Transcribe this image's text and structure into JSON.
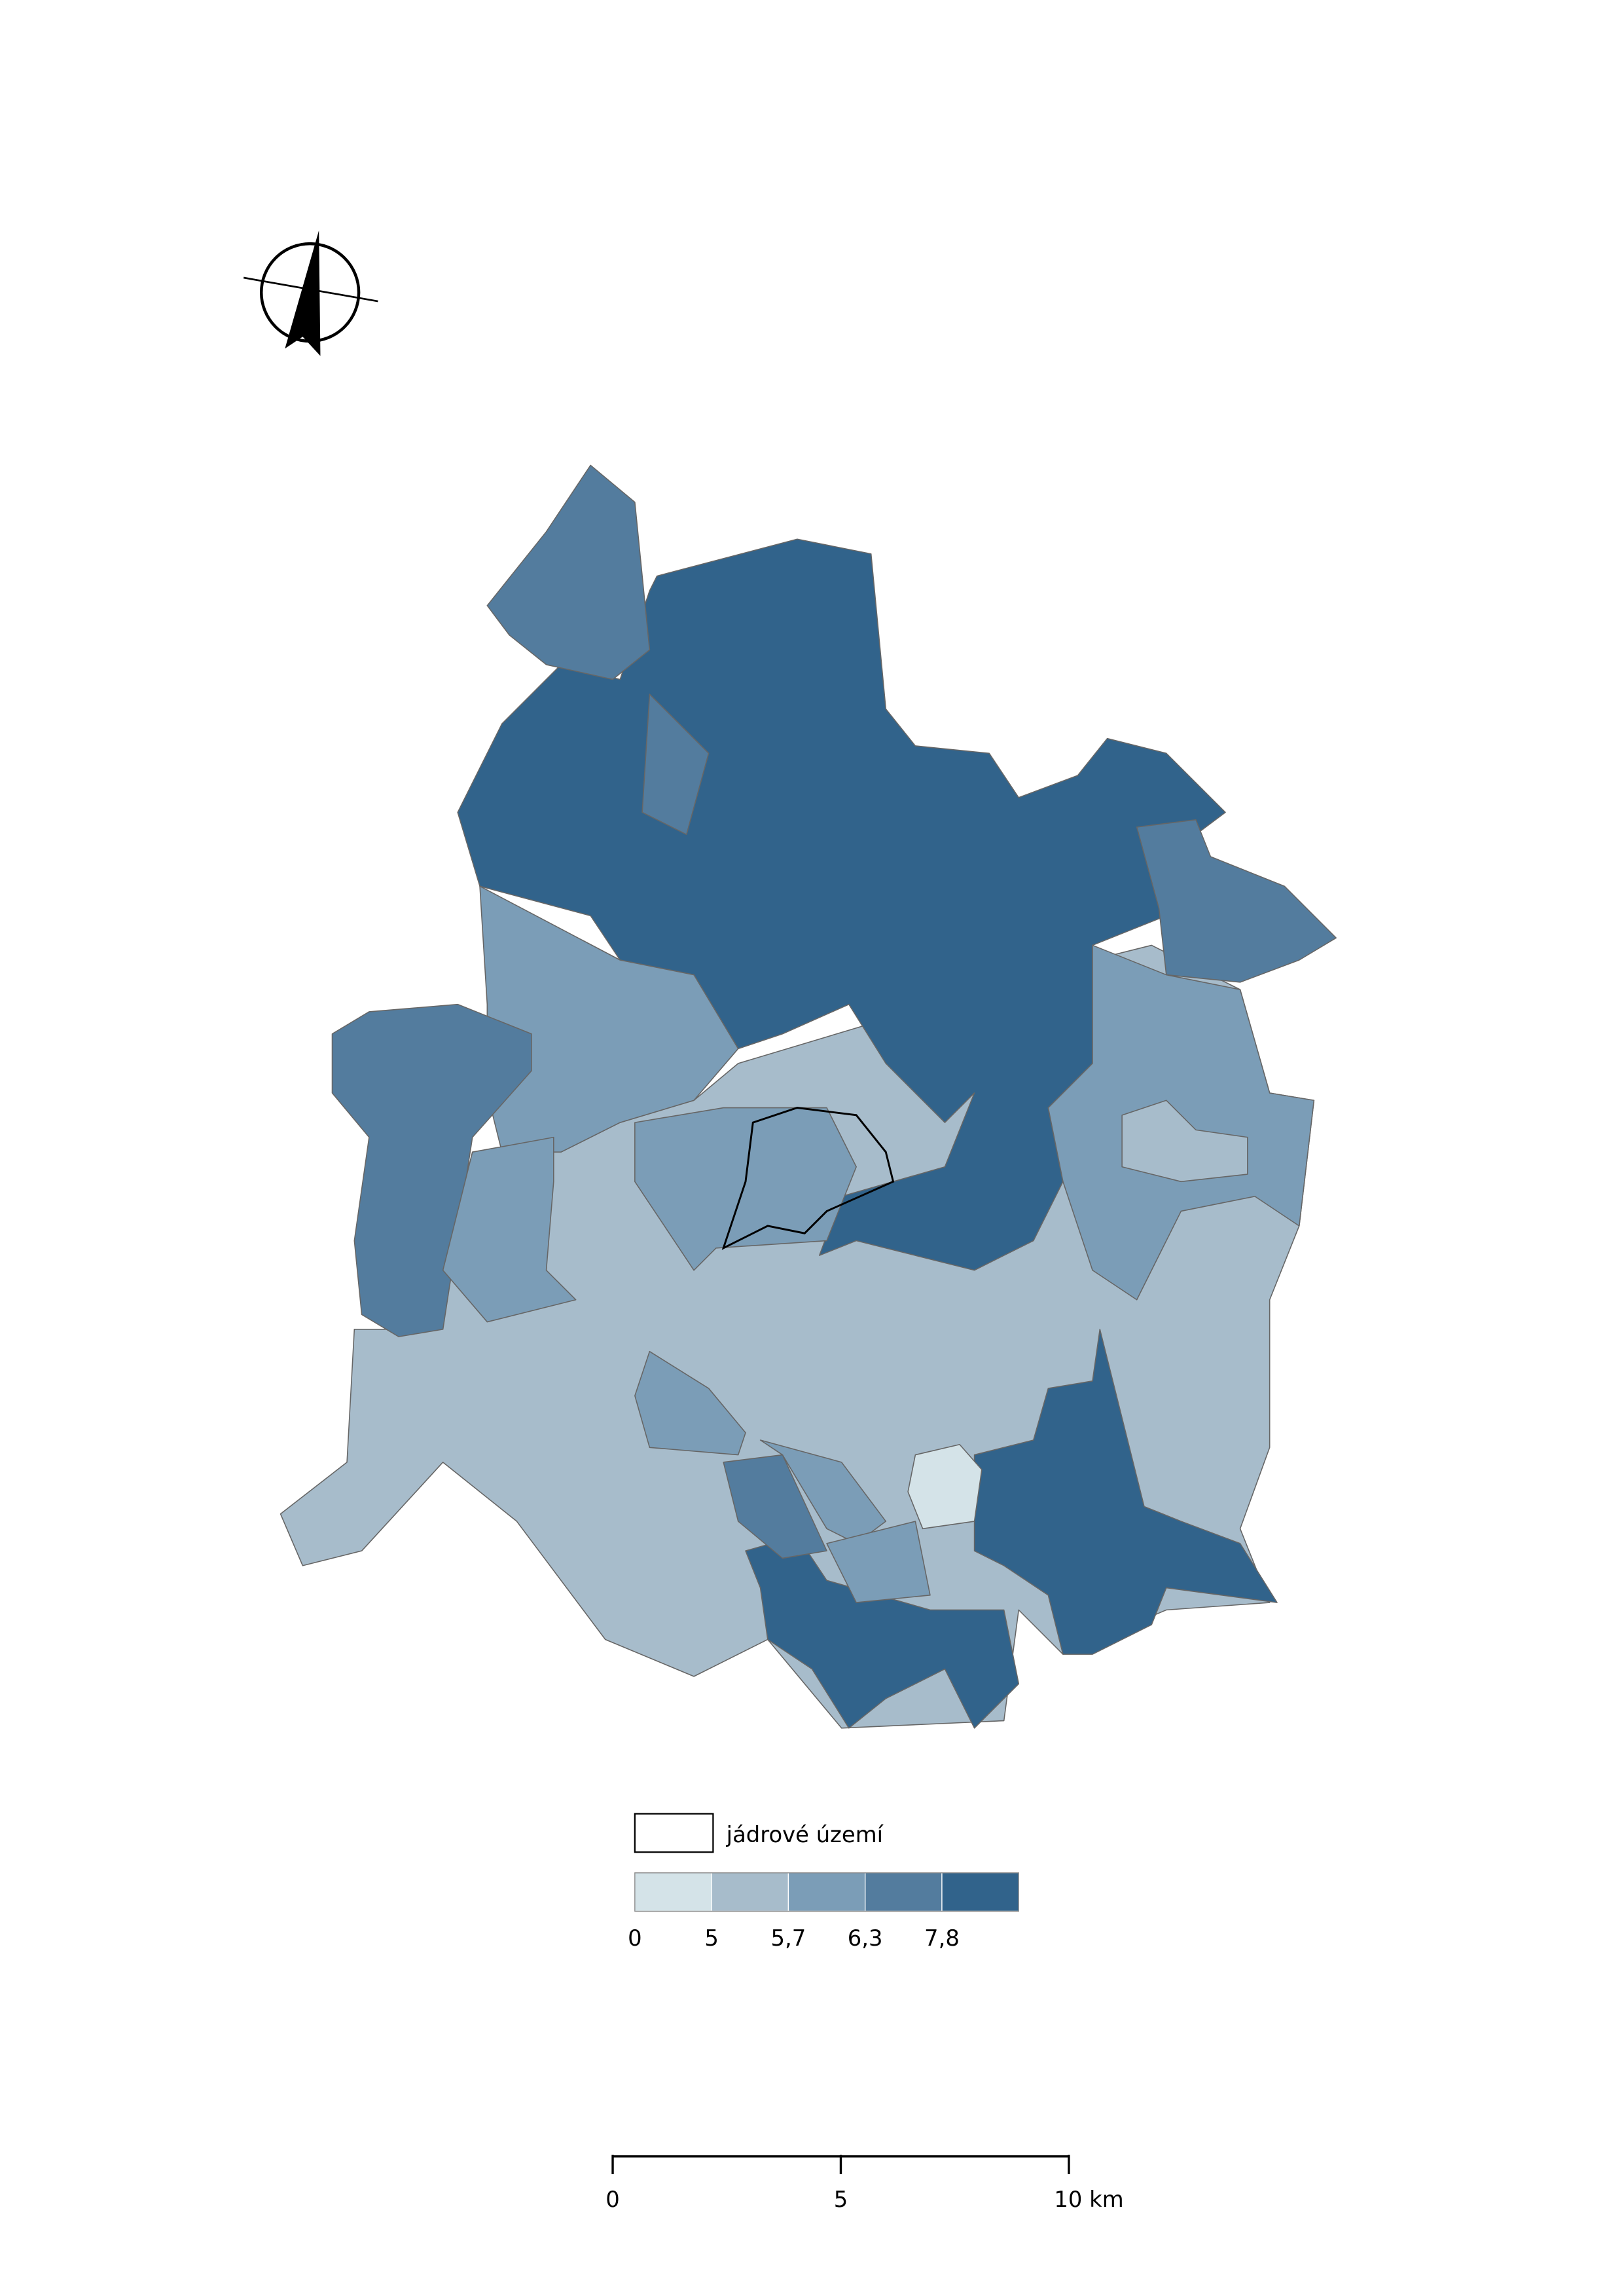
{
  "legend": {
    "core_label": "jádrové území",
    "breaks": [
      0,
      5,
      {
        "value": 5.7,
        "label": "5,7"
      },
      {
        "value": 6.3,
        "label": "6,3"
      },
      {
        "value": 7.8,
        "label": "7,8"
      }
    ],
    "colors": [
      "#d4e3e8",
      "#a7bccb",
      "#7b9db7",
      "#537c9e",
      "#31638b"
    ]
  },
  "scale_bar": {
    "ticks": [
      0,
      5,
      {
        "value": 10,
        "label": "10 km"
      }
    ]
  }
}
